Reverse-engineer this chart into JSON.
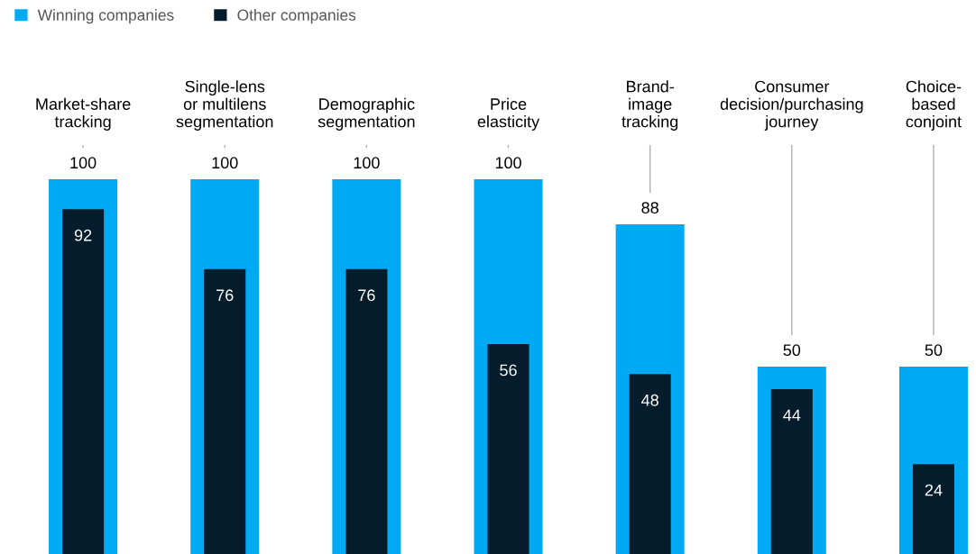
{
  "chart_data": {
    "type": "bar",
    "categories": [
      "Market-share\ntracking",
      "Single-lens\nor multilens\nsegmentation",
      "Demographic\nsegmentation",
      "Price\nelasticity",
      "Brand-\nimage\ntracking",
      "Consumer\ndecision/purchasing\njourney",
      "Choice-\nbased\nconjoint"
    ],
    "series": [
      {
        "name": "Winning companies",
        "color": "#00a9f4",
        "values": [
          100,
          100,
          100,
          100,
          88,
          50,
          50
        ]
      },
      {
        "name": "Other companies",
        "color": "#051c2c",
        "values": [
          92,
          76,
          76,
          56,
          48,
          44,
          24
        ]
      }
    ],
    "ylim": [
      0,
      100
    ],
    "data_labels": true,
    "legend": "top left"
  }
}
